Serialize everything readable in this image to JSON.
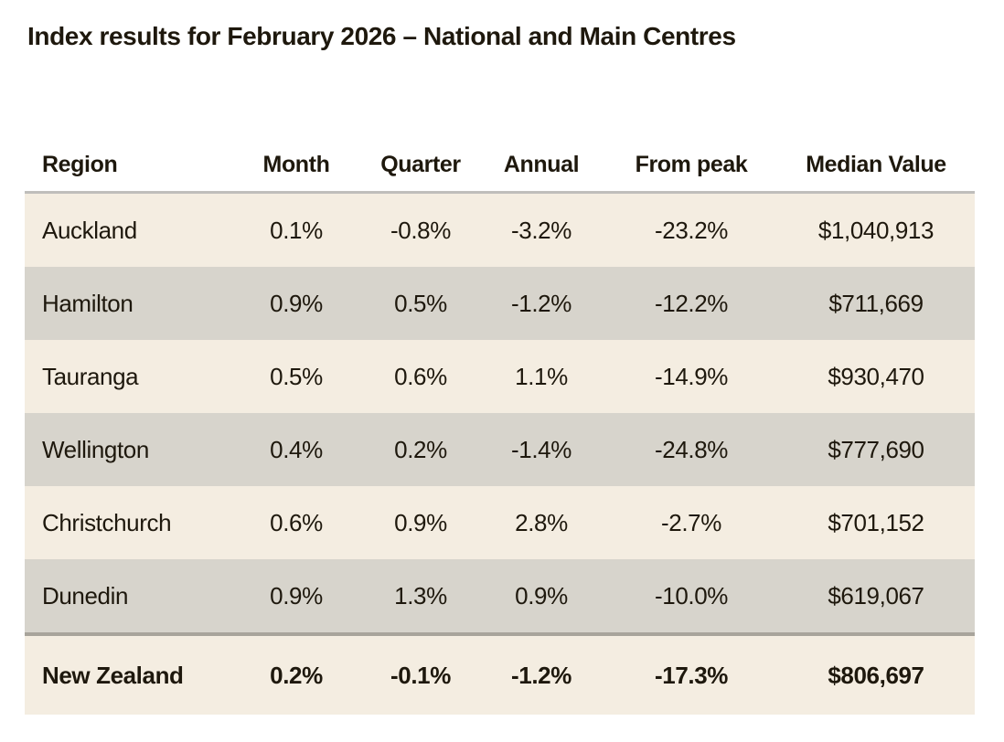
{
  "title": "Index results for February 2026 – National and Main Centres",
  "colors": {
    "background": "#ffffff",
    "text": "#1e180d",
    "row_cream": "#f4ede1",
    "row_gray": "#d7d4cc",
    "header_underline": "#bfbebb",
    "total_divider": "#a8a49b"
  },
  "chart_data": {
    "type": "table",
    "title": "Index results for February 2026 – National and Main Centres",
    "columns": [
      "Region",
      "Month",
      "Quarter",
      "Annual",
      "From peak",
      "Median Value"
    ],
    "rows": [
      {
        "cells": [
          "Auckland",
          "0.1%",
          "-0.8%",
          "-3.2%",
          "-23.2%",
          "$1,040,913"
        ]
      },
      {
        "cells": [
          "Hamilton",
          "0.9%",
          "0.5%",
          "-1.2%",
          "-12.2%",
          "$711,669"
        ]
      },
      {
        "cells": [
          "Tauranga",
          "0.5%",
          "0.6%",
          "1.1%",
          "-14.9%",
          "$930,470"
        ]
      },
      {
        "cells": [
          "Wellington",
          "0.4%",
          "0.2%",
          "-1.4%",
          "-24.8%",
          "$777,690"
        ]
      },
      {
        "cells": [
          "Christchurch",
          "0.6%",
          "0.9%",
          "2.8%",
          "-2.7%",
          "$701,152"
        ]
      },
      {
        "cells": [
          "Dunedin",
          "0.9%",
          "1.3%",
          "0.9%",
          "-10.0%",
          "$619,067"
        ]
      },
      {
        "cells": [
          "New Zealand",
          "0.2%",
          "-0.1%",
          "-1.2%",
          "-17.3%",
          "$806,697"
        ],
        "is_total": true
      }
    ],
    "layout": {
      "zebra_striping": true,
      "total_row_bold": true,
      "numeric_columns_centered": true
    }
  }
}
